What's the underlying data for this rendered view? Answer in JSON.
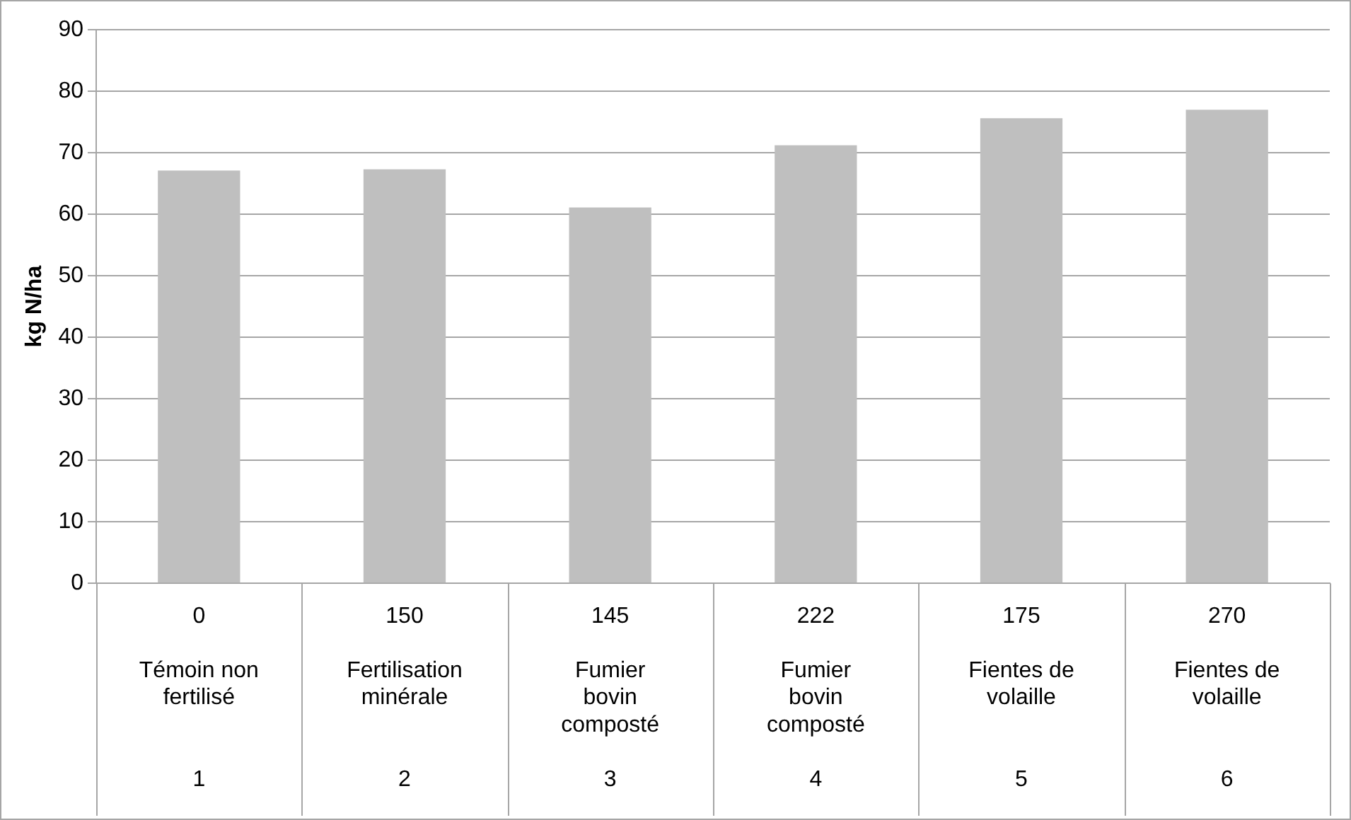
{
  "chart_data": {
    "type": "bar",
    "ylabel": "kg N/ha",
    "categories": [
      "0\nTémoin non fertilisé\n1",
      "150\nFertilisation minérale\n2",
      "145\nFumier bovin composté\n3",
      "222\nFumier bovin composté\n4",
      "175\nFientes de volaille\n5",
      "270\nFientes de volaille\n6"
    ],
    "values": [
      67.1,
      67.3,
      61.1,
      71.2,
      75.6,
      77.0
    ],
    "color": "#bfbfbf",
    "ylim": [
      0,
      90
    ],
    "yticks": [
      0,
      10,
      20,
      30,
      40,
      50,
      60,
      70,
      80,
      90
    ],
    "grid": "y"
  }
}
